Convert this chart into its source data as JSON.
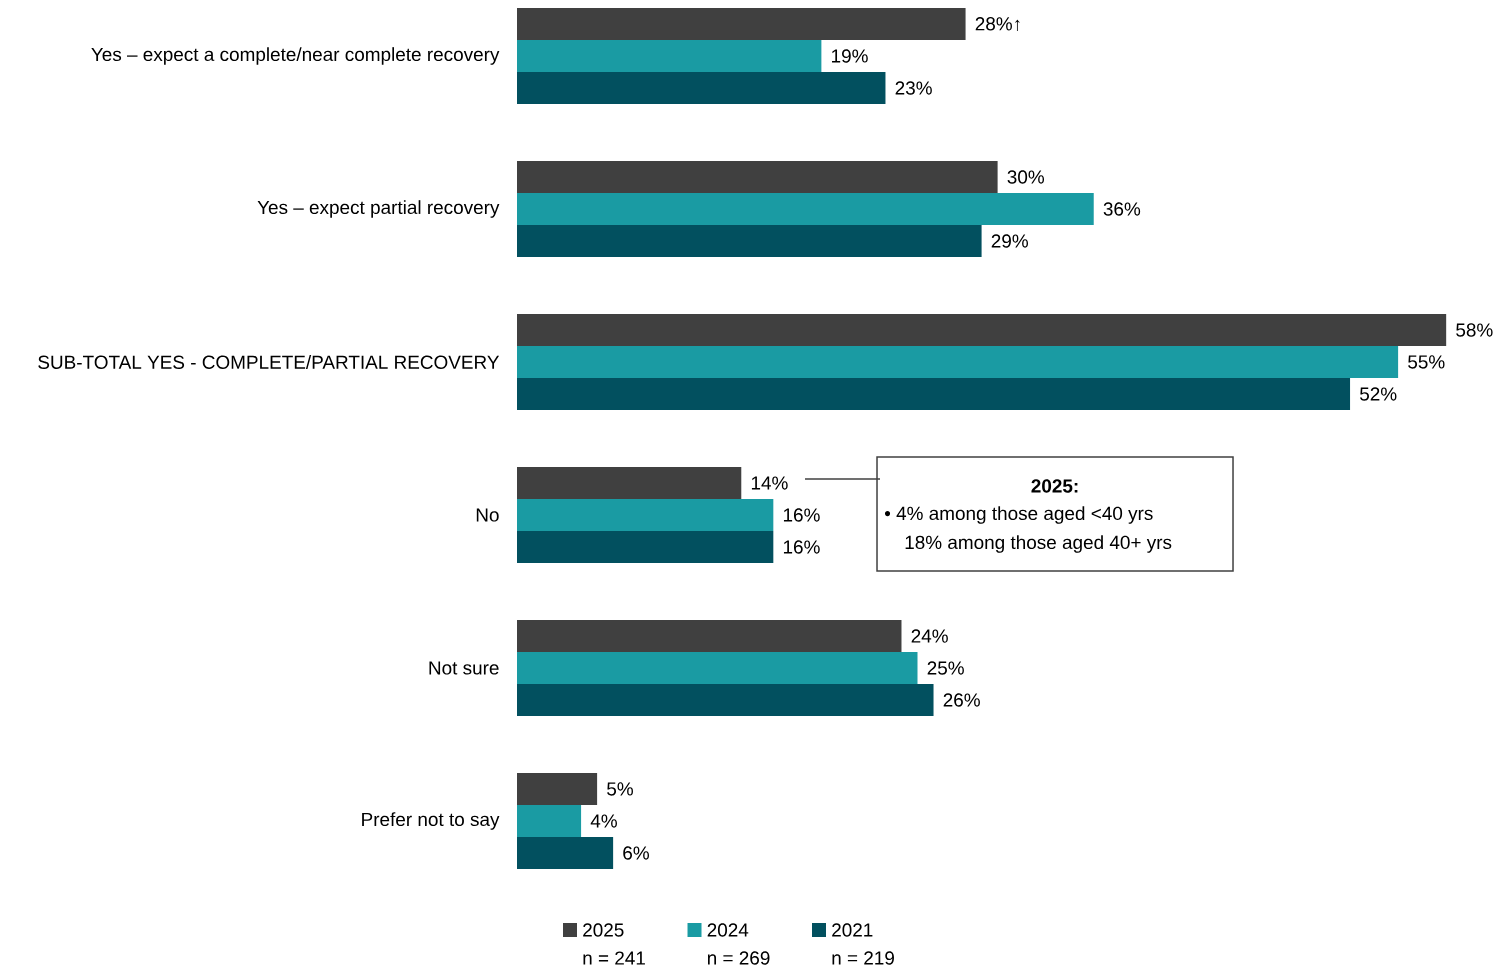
{
  "chart_data": {
    "type": "bar",
    "orientation": "horizontal",
    "legend": "bottom",
    "categories": [
      "Yes – expect a complete/near complete recovery",
      "Yes – expect partial recovery",
      "SUB-TOTAL YES - COMPLETE/PARTIAL RECOVERY",
      "No",
      "Not sure",
      "Prefer not to say"
    ],
    "series": [
      {
        "name": "2025",
        "color": "#404040",
        "values": [
          28,
          30,
          58,
          14,
          24,
          5
        ],
        "value_labels": [
          "28%↑",
          "30%",
          "58%",
          "14%",
          "24%",
          "5%"
        ]
      },
      {
        "name": "2024",
        "color": "#1a9ba3",
        "values": [
          19,
          36,
          55,
          16,
          25,
          4
        ],
        "value_labels": [
          "19%",
          "36%",
          "55%",
          "16%",
          "25%",
          "4%"
        ]
      },
      {
        "name": "2021",
        "color": "#02505f",
        "values": [
          23,
          29,
          52,
          16,
          26,
          6
        ],
        "value_labels": [
          "23%",
          "29%",
          "52%",
          "16%",
          "26%",
          "6%"
        ]
      }
    ],
    "annotations": [
      "2025:",
      "• 4% among those aged <40 yrs",
      "18% among those aged 40+ yrs",
      "n = 241",
      "n = 269",
      "n = 219"
    ]
  }
}
